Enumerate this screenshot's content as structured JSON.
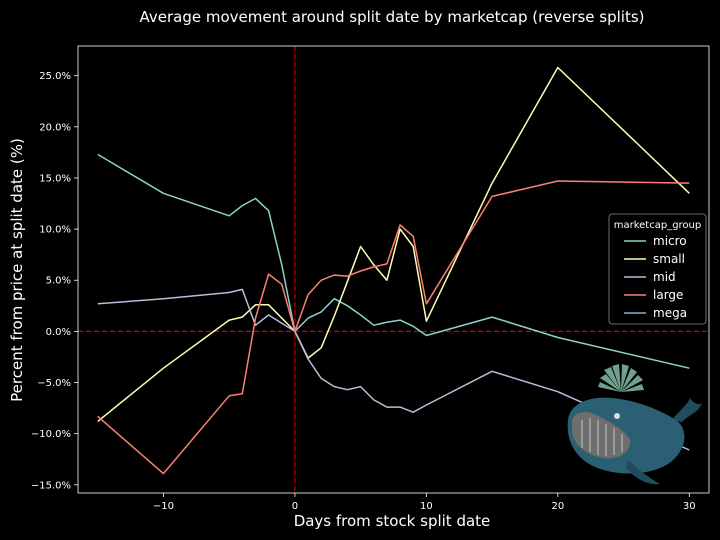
{
  "chart_data": {
    "type": "line",
    "title": "Average movement around split date by marketcap (reverse splits)",
    "xlabel": "Days from stock split date",
    "ylabel": "Percent from price at split date (%)",
    "xlim": [
      -16.5,
      31.5
    ],
    "ylim": [
      -15.8,
      27.9
    ],
    "x_ticks": [
      -10,
      0,
      10,
      20,
      30
    ],
    "x_tick_labels": [
      "−10",
      "0",
      "10",
      "20",
      "30"
    ],
    "y_ticks": [
      -15,
      -10,
      -5,
      0,
      5,
      10,
      15,
      20,
      25
    ],
    "y_tick_labels": [
      "−15.0%",
      "−10.0%",
      "−5.0%",
      "0.0%",
      "5.0%",
      "10.0%",
      "15.0%",
      "20.0%",
      "25.0%"
    ],
    "reference_lines": {
      "x": 0,
      "y": 0,
      "color": "#cc0000",
      "style": "dashed"
    },
    "legend": {
      "title": "marketcap_group",
      "position": "right"
    },
    "series": [
      {
        "name": "micro",
        "color": "#8dd3c7",
        "points": [
          [
            -15,
            17.3
          ],
          [
            -10,
            13.5
          ],
          [
            -5,
            11.3
          ],
          [
            -4,
            12.3
          ],
          [
            -3,
            13.0
          ],
          [
            -2,
            11.8
          ],
          [
            -1,
            6.5
          ],
          [
            0,
            0.0
          ],
          [
            1,
            1.3
          ],
          [
            2,
            1.9
          ],
          [
            3,
            3.2
          ],
          [
            4,
            2.5
          ],
          [
            5,
            1.6
          ],
          [
            6,
            0.6
          ],
          [
            7,
            0.9
          ],
          [
            8,
            1.1
          ],
          [
            9,
            0.5
          ],
          [
            10,
            -0.4
          ],
          [
            15,
            1.4
          ],
          [
            20,
            -0.6
          ],
          [
            30,
            -3.6
          ]
        ]
      },
      {
        "name": "small",
        "color": "#ffffb3",
        "points": [
          [
            -15,
            -8.8
          ],
          [
            -10,
            -3.6
          ],
          [
            -5,
            1.1
          ],
          [
            -4,
            1.4
          ],
          [
            -3,
            2.6
          ],
          [
            -2,
            2.6
          ],
          [
            -1,
            1.3
          ],
          [
            0,
            0.0
          ],
          [
            1,
            -2.6
          ],
          [
            2,
            -1.6
          ],
          [
            3,
            1.5
          ],
          [
            4,
            4.9
          ],
          [
            5,
            8.3
          ],
          [
            6,
            6.5
          ],
          [
            7,
            5.0
          ],
          [
            8,
            10.0
          ],
          [
            9,
            8.3
          ],
          [
            10,
            1.0
          ],
          [
            15,
            14.5
          ],
          [
            20,
            25.8
          ],
          [
            30,
            13.5
          ]
        ]
      },
      {
        "name": "mid",
        "color": "#bebada",
        "points": [
          [
            -15,
            2.7
          ],
          [
            -10,
            3.2
          ],
          [
            -5,
            3.8
          ],
          [
            -4,
            4.1
          ],
          [
            -3,
            0.6
          ],
          [
            -2,
            1.6
          ],
          [
            -1,
            0.8
          ],
          [
            0,
            0.0
          ],
          [
            1,
            -2.7
          ],
          [
            2,
            -4.6
          ],
          [
            3,
            -5.4
          ],
          [
            4,
            -5.7
          ],
          [
            5,
            -5.4
          ],
          [
            6,
            -6.7
          ],
          [
            7,
            -7.4
          ],
          [
            8,
            -7.4
          ],
          [
            9,
            -7.9
          ],
          [
            10,
            -7.2
          ],
          [
            15,
            -3.9
          ],
          [
            20,
            -5.9
          ],
          [
            30,
            -11.6
          ]
        ]
      },
      {
        "name": "large",
        "color": "#fb8072",
        "points": [
          [
            -15,
            -8.3
          ],
          [
            -10,
            -13.9
          ],
          [
            -5,
            -6.3
          ],
          [
            -4,
            -6.1
          ],
          [
            -3,
            1.3
          ],
          [
            -2,
            5.6
          ],
          [
            -1,
            4.6
          ],
          [
            0,
            0.0
          ],
          [
            1,
            3.6
          ],
          [
            2,
            5.0
          ],
          [
            3,
            5.5
          ],
          [
            4,
            5.4
          ],
          [
            5,
            5.9
          ],
          [
            6,
            6.3
          ],
          [
            7,
            6.6
          ],
          [
            8,
            10.4
          ],
          [
            9,
            9.3
          ],
          [
            10,
            2.7
          ],
          [
            15,
            13.2
          ],
          [
            20,
            14.7
          ],
          [
            30,
            14.5
          ]
        ]
      },
      {
        "name": "mega",
        "color": "#80b1d3",
        "points": []
      }
    ]
  }
}
